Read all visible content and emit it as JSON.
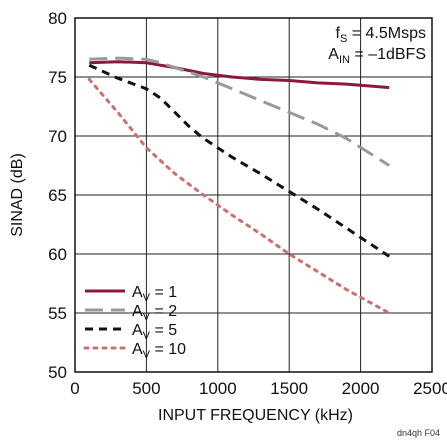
{
  "chart_data": {
    "type": "line",
    "xlabel": "INPUT FREQUENCY (kHz)",
    "ylabel": "SINAD (dB)",
    "xlim": [
      0,
      2500
    ],
    "ylim": [
      50,
      80
    ],
    "xticks": [
      0,
      500,
      1000,
      1500,
      2000,
      2500
    ],
    "yticks": [
      50,
      55,
      60,
      65,
      70,
      75,
      80
    ],
    "grid": true,
    "legend_position": "bottom-left",
    "annotations": [
      {
        "text": "fS = 4.5Msps",
        "base": "f",
        "sub": "S",
        "rest": " = 4.5Msps"
      },
      {
        "text": "AIN = –1dBFS",
        "base": "A",
        "sub": "IN",
        "rest": " = –1dBFS"
      }
    ],
    "footnote": "dn4qh F04",
    "series": [
      {
        "name": "AV = 1",
        "label_base": "A",
        "label_sub": "V",
        "label_rest": " = 1",
        "color": "#8b1a3a",
        "dash": "solid",
        "x": [
          100,
          300,
          500,
          700,
          900,
          1100,
          1300,
          1500,
          1700,
          1900,
          2200
        ],
        "y": [
          76.2,
          76.3,
          76.2,
          75.8,
          75.3,
          75.0,
          74.8,
          74.7,
          74.5,
          74.4,
          74.1
        ]
      },
      {
        "name": "AV = 2",
        "label_base": "A",
        "label_sub": "V",
        "label_rest": " = 2",
        "color": "#999999",
        "dash": "long-dash",
        "x": [
          100,
          300,
          500,
          600,
          700,
          900,
          1100,
          1300,
          1500,
          1700,
          1900,
          2200
        ],
        "y": [
          76.5,
          76.6,
          76.5,
          76.2,
          75.8,
          75.0,
          74.0,
          73.0,
          72.0,
          71.0,
          69.8,
          67.5
        ]
      },
      {
        "name": "AV = 5",
        "label_base": "A",
        "label_sub": "V",
        "label_rest": " = 5",
        "color": "#111111",
        "dash": "dash",
        "x": [
          100,
          300,
          500,
          600,
          700,
          800,
          900,
          1100,
          1300,
          1500,
          1700,
          1900,
          2200
        ],
        "y": [
          76.0,
          74.9,
          74.0,
          73.2,
          72.0,
          70.8,
          69.8,
          68.2,
          66.8,
          65.3,
          63.8,
          62.2,
          59.8
        ]
      },
      {
        "name": "AV = 10",
        "label_base": "A",
        "label_sub": "V",
        "label_rest": " = 10",
        "color": "#cc6f6f",
        "dash": "dot",
        "x": [
          100,
          300,
          500,
          700,
          900,
          1100,
          1300,
          1500,
          1700,
          1900,
          2200
        ],
        "y": [
          74.8,
          72.0,
          69.0,
          66.8,
          65.0,
          63.3,
          61.7,
          60.0,
          58.5,
          57.0,
          55.0
        ]
      }
    ]
  }
}
